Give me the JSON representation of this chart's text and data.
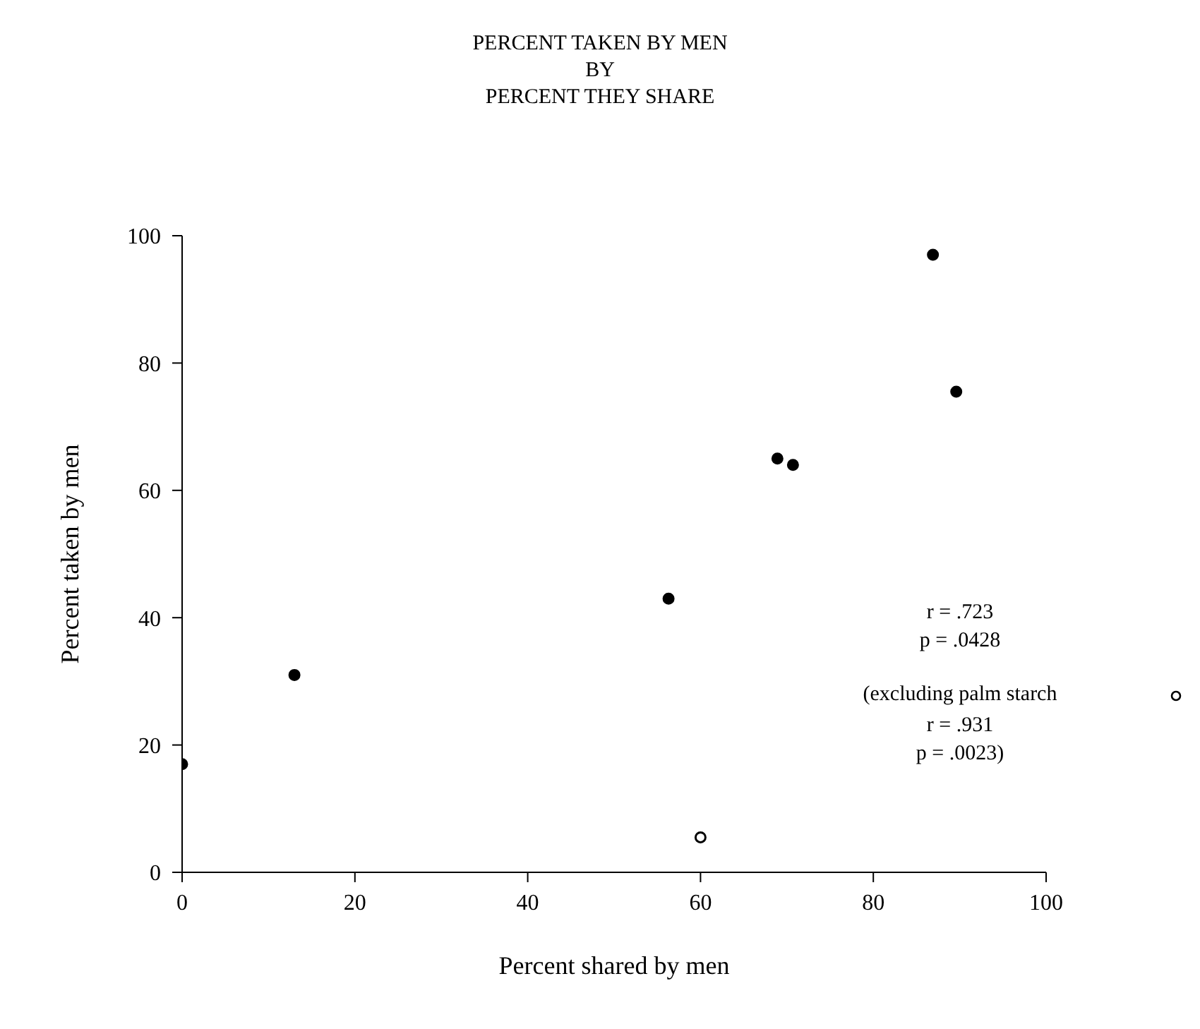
{
  "chart_data": {
    "type": "scatter",
    "title": "PERCENT TAKEN BY MEN\nBY\nPERCENT THEY SHARE",
    "xlabel": "Percent shared by men",
    "ylabel": "Percent taken by men",
    "series": [
      {
        "color": "#000000",
        "x": [
          0,
          13,
          56.3,
          68.9,
          70.7,
          86.9,
          89.6
        ],
        "values": [
          17,
          31,
          43,
          65,
          64,
          97,
          75.5
        ]
      },
      {
        "color": "#000000",
        "x": [
          60
        ],
        "values": [
          5.5
        ]
      }
    ],
    "xlim": [
      0,
      100
    ],
    "xticks": [
      0,
      20,
      40,
      60,
      80,
      100
    ],
    "ylim": [
      0,
      100
    ],
    "yticks": [
      0,
      20,
      40,
      60,
      80,
      100
    ],
    "grid": false,
    "legend": false,
    "marker": "circle",
    "annotations": [
      "r = .723",
      "p = .0428",
      "(excluding palm starch",
      "r = .931",
      "p = .0023)"
    ]
  }
}
